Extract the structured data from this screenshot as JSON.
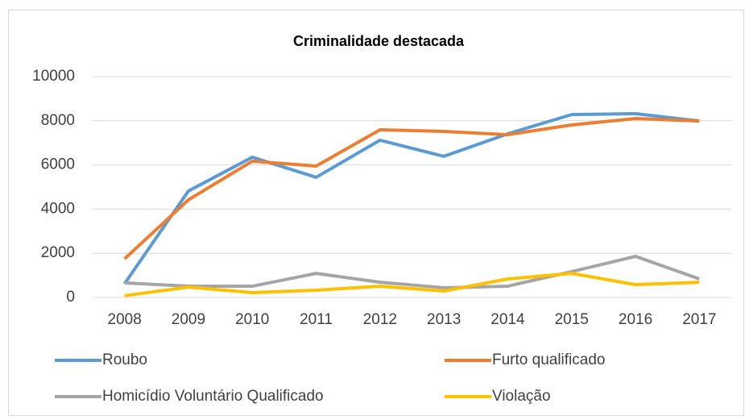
{
  "chart_data": {
    "type": "line",
    "title": "Criminalidade destacada",
    "categories": [
      "2008",
      "2009",
      "2010",
      "2011",
      "2012",
      "2013",
      "2014",
      "2015",
      "2016",
      "2017"
    ],
    "series": [
      {
        "name": "Roubo",
        "color": "#5b9bd5",
        "values": [
          620,
          4820,
          6350,
          5440,
          7120,
          6390,
          7410,
          8280,
          8320,
          7990
        ]
      },
      {
        "name": "Furto qualificado",
        "color": "#ed7d31",
        "values": [
          1750,
          4420,
          6170,
          5950,
          7590,
          7520,
          7370,
          7810,
          8100,
          7990
        ]
      },
      {
        "name": "Homicídio Voluntário Qualificado",
        "color": "#a5a5a5",
        "values": [
          660,
          510,
          510,
          1090,
          690,
          440,
          510,
          1170,
          1860,
          840
        ]
      },
      {
        "name": "Violação",
        "color": "#ffc000",
        "values": [
          80,
          470,
          220,
          330,
          510,
          290,
          840,
          1090,
          580,
          690
        ]
      }
    ],
    "ylim": [
      0,
      10000
    ],
    "yticks": [
      0,
      2000,
      4000,
      6000,
      8000,
      10000
    ],
    "grid": true,
    "legend": "bottom"
  }
}
